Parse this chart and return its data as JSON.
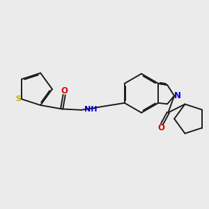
{
  "background_color": "#ebebeb",
  "bond_color": "#1a1a1a",
  "atom_colors": {
    "S": "#c8a800",
    "O": "#dd0000",
    "N": "#0000cc",
    "C": "#1a1a1a"
  },
  "figsize": [
    3.0,
    3.0
  ],
  "dpi": 100
}
